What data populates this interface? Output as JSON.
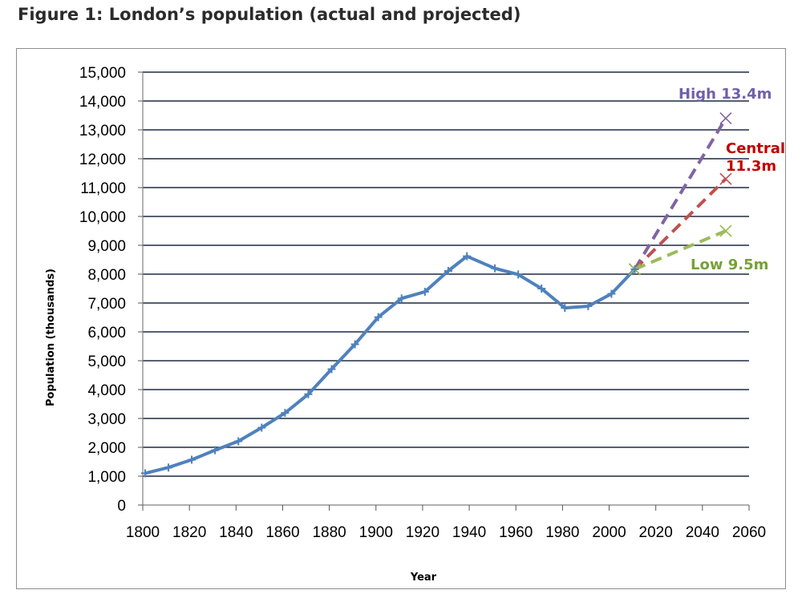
{
  "figure": {
    "title": "Figure 1: London’s population (actual and projected)"
  },
  "chart_data": {
    "type": "line",
    "title": "",
    "xlabel": "Year",
    "ylabel": "Population (thousands)",
    "xlim": [
      1800,
      2060
    ],
    "ylim": [
      0,
      15000
    ],
    "x_ticks": [
      1800,
      1820,
      1840,
      1860,
      1880,
      1900,
      1920,
      1940,
      1960,
      1980,
      2000,
      2020,
      2040,
      2060
    ],
    "y_ticks": [
      0,
      1000,
      2000,
      3000,
      4000,
      5000,
      6000,
      7000,
      8000,
      9000,
      10000,
      11000,
      12000,
      13000,
      14000,
      15000
    ],
    "y_tick_labels": [
      "0",
      "1,000",
      "2,000",
      "3,000",
      "4,000",
      "5,000",
      "6,000",
      "7,000",
      "8,000",
      "9,000",
      "10,000",
      "11,000",
      "12,000",
      "13,000",
      "14,000",
      "15,000"
    ],
    "grid": "horizontal",
    "series": [
      {
        "name": "",
        "style": "solid",
        "marker": "plus",
        "color": "#4f81bd",
        "x": [
          1801,
          1811,
          1821,
          1831,
          1841,
          1851,
          1861,
          1871,
          1881,
          1891,
          1901,
          1911,
          1921,
          1931,
          1939,
          1951,
          1961,
          1971,
          1981,
          1991,
          2001,
          2011
        ],
        "y": [
          1100,
          1300,
          1570,
          1900,
          2210,
          2680,
          3190,
          3840,
          4710,
          5570,
          6510,
          7160,
          7390,
          8110,
          8620,
          8200,
          7990,
          7500,
          6830,
          6890,
          7320,
          8170
        ]
      },
      {
        "name": "High",
        "style": "dashed",
        "marker": "x",
        "color": "#8064a2",
        "x": [
          2011,
          2050
        ],
        "y": [
          8170,
          13400
        ]
      },
      {
        "name": "Central",
        "style": "dashed",
        "marker": "x",
        "color": "#c0504d",
        "x": [
          2011,
          2050
        ],
        "y": [
          8170,
          11300
        ]
      },
      {
        "name": "Low",
        "style": "dashed",
        "marker": "x",
        "color": "#9bbb59",
        "x": [
          2011,
          2050
        ],
        "y": [
          8170,
          9500
        ]
      }
    ],
    "annotations": [
      {
        "lines": [
          "High 13.4m"
        ],
        "color": "#7060a8"
      },
      {
        "lines": [
          "Central",
          "11.3m"
        ],
        "color": "#c00000"
      },
      {
        "lines": [
          "Low 9.5m"
        ],
        "color": "#77a03a"
      }
    ]
  }
}
